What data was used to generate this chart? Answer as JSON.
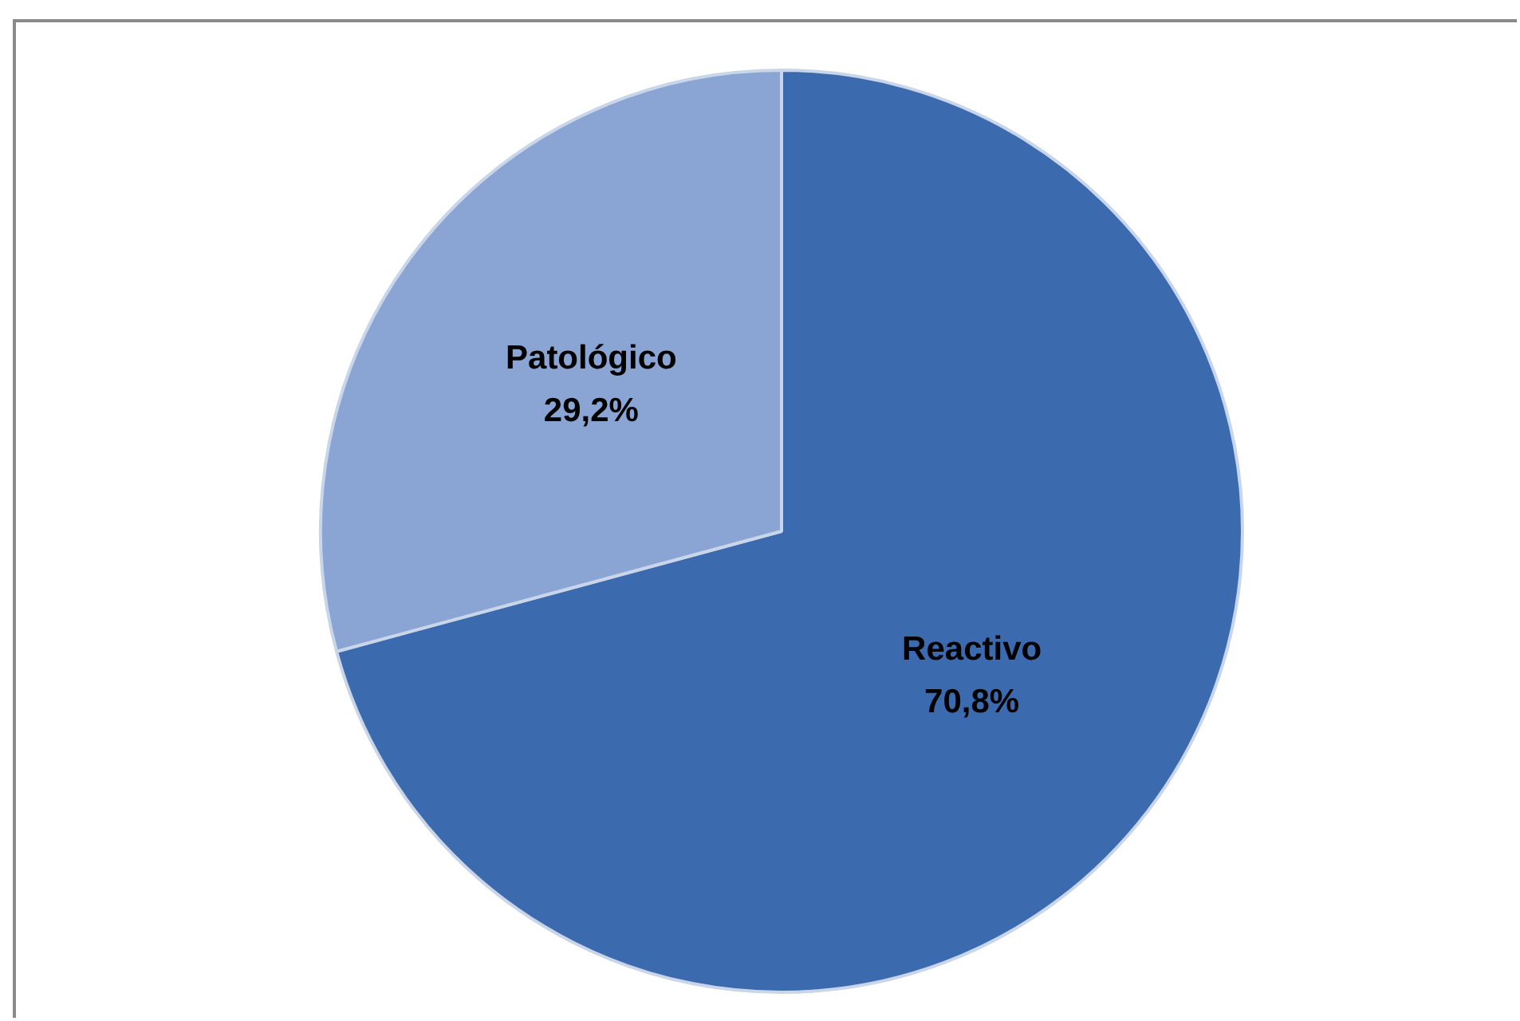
{
  "chart_data": {
    "type": "pie",
    "categories": [
      "Reactivo",
      "Patológico"
    ],
    "values": [
      70.8,
      29.2
    ],
    "colors": [
      "#3b6aae",
      "#8aa5d3"
    ],
    "value_labels": [
      "70,8%",
      "29,2%"
    ],
    "legend": false
  }
}
